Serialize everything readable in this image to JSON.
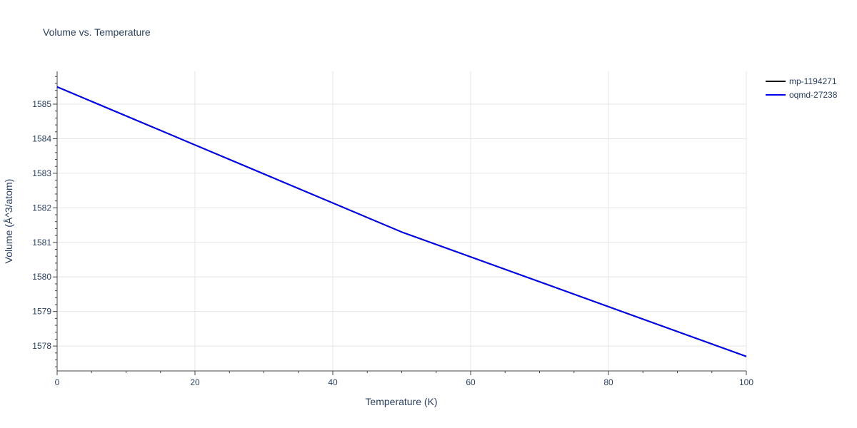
{
  "chart_data": {
    "type": "line",
    "title": "Volume vs. Temperature",
    "xlabel": "Temperature (K)",
    "ylabel": "Volume (Å^3/atom)",
    "xlim": [
      0,
      100
    ],
    "ylim": [
      1577.28,
      1585.95
    ],
    "x_ticks": [
      0,
      20,
      40,
      60,
      80,
      100
    ],
    "y_ticks": [
      1578,
      1579,
      1580,
      1581,
      1582,
      1583,
      1584,
      1585
    ],
    "grid": true,
    "legend_position": "top-right",
    "series": [
      {
        "name": "mp-1194271",
        "color": "#000000",
        "x": [
          0,
          50,
          100
        ],
        "y": [
          1585.5,
          1581.3,
          1577.7
        ]
      },
      {
        "name": "oqmd-27238",
        "color": "#0000ee",
        "x": [
          0,
          50,
          100
        ],
        "y": [
          1585.5,
          1581.3,
          1577.7
        ]
      }
    ]
  }
}
